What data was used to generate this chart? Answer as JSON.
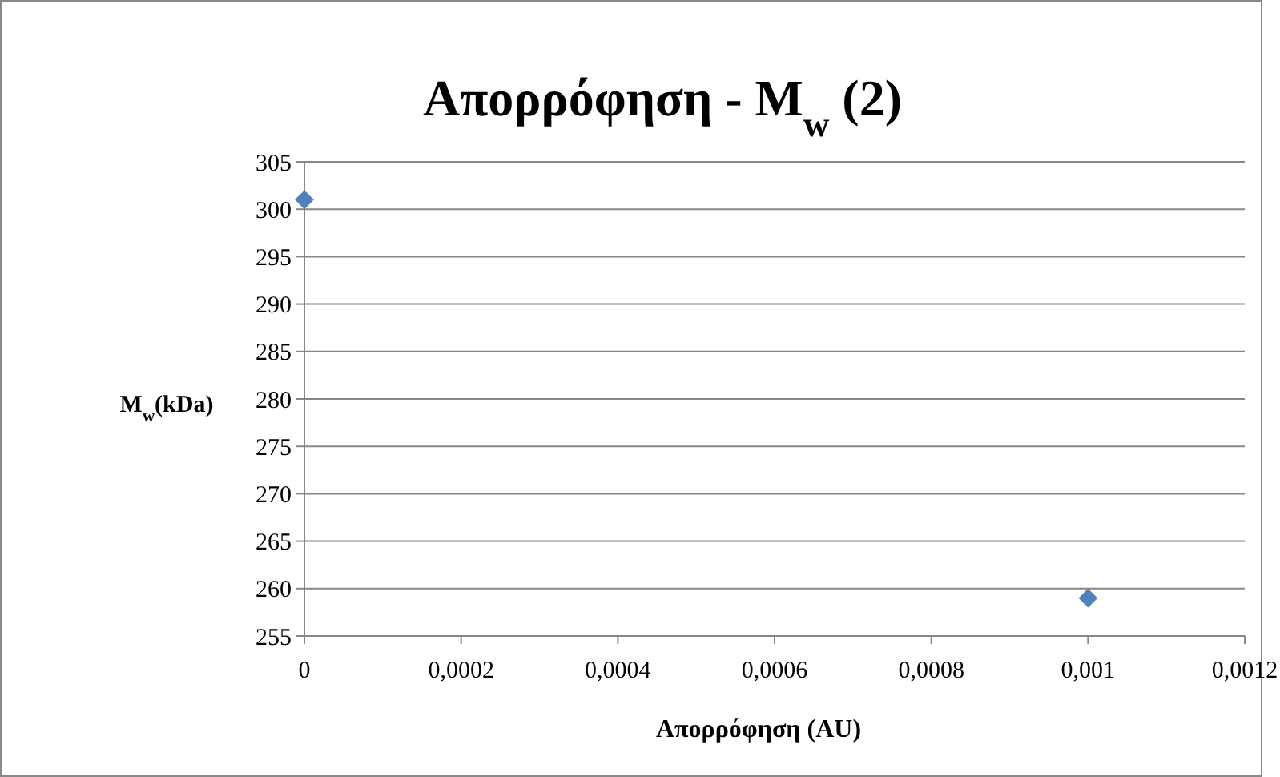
{
  "chart_data": {
    "type": "scatter",
    "title": "Απορρόφηση - M$_{w}$ (2)",
    "xlabel": "Απορρόφηση  (AU)",
    "ylabel": "M$_{w}$(kDa)",
    "x": [
      0,
      0.001
    ],
    "series": [
      {
        "color": "#4f81bd",
        "values": [
          301,
          259
        ]
      }
    ],
    "xlim": [
      0,
      0.0012
    ],
    "xticks": [
      0,
      {
        "value": 0.0002,
        "label": "0,0002"
      },
      {
        "value": 0.0004,
        "label": "0,0004"
      },
      {
        "value": 0.0006,
        "label": "0,0006"
      },
      {
        "value": 0.0008,
        "label": "0,0008"
      },
      {
        "value": 0.001,
        "label": "0,001"
      },
      {
        "value": 0.0012,
        "label": "0,0012"
      }
    ],
    "ylim": [
      255,
      305
    ],
    "yticks": [
      255,
      260,
      265,
      270,
      275,
      280,
      285,
      290,
      295,
      300,
      305
    ],
    "grid": "y",
    "marker": "diamond"
  }
}
